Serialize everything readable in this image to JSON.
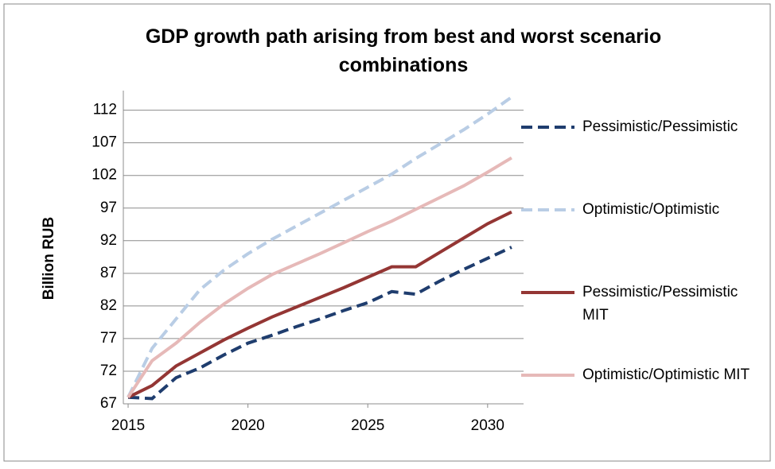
{
  "chart_data": {
    "type": "line",
    "title": "GDP growth path arising from best and worst scenario combinations",
    "y_label": "Billion RUB",
    "x": [
      2015,
      2016,
      2017,
      2018,
      2019,
      2020,
      2021,
      2022,
      2023,
      2024,
      2025,
      2026,
      2027,
      2028,
      2029,
      2030,
      2031
    ],
    "xlim": [
      2014.8,
      2031.5
    ],
    "xticks": [
      2015,
      2020,
      2025,
      2030
    ],
    "ylim": [
      67,
      115
    ],
    "yticks": [
      67,
      72,
      77,
      82,
      87,
      92,
      97,
      102,
      107,
      112
    ],
    "grid": true,
    "legend": "right",
    "series": [
      {
        "name": "Pessimistic/Pessimistic",
        "color": "#1f3d6e",
        "dash": true,
        "values": [
          68,
          67.8,
          71,
          72.5,
          74.5,
          76.3,
          77.5,
          78.8,
          80,
          81.3,
          82.5,
          84.2,
          83.8,
          85.8,
          87.6,
          89.3,
          91
        ]
      },
      {
        "name": "Optimistic/Optimistic",
        "color": "#b9cde5",
        "dash": true,
        "values": [
          68,
          75.5,
          80,
          84.5,
          87.5,
          90,
          92.2,
          94.2,
          96.2,
          98.2,
          100.2,
          102.2,
          104.6,
          106.8,
          109,
          111.4,
          114
        ]
      },
      {
        "name": "Pessimistic/Pessimistic MIT",
        "color": "#943634",
        "dash": false,
        "values": [
          68,
          69.8,
          72.8,
          74.8,
          76.8,
          78.6,
          80.3,
          81.8,
          83.3,
          84.8,
          86.4,
          88,
          88,
          90.2,
          92.4,
          94.6,
          96.4
        ]
      },
      {
        "name": "Optimistic/Optimistic MIT",
        "color": "#e6b9b8",
        "dash": false,
        "values": [
          68,
          73.6,
          76.3,
          79.5,
          82.3,
          84.7,
          86.8,
          88.4,
          90,
          91.7,
          93.4,
          95,
          96.8,
          98.6,
          100.4,
          102.5,
          104.7
        ]
      }
    ]
  }
}
